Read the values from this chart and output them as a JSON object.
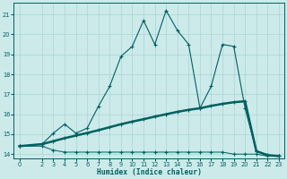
{
  "xlabel": "Humidex (Indice chaleur)",
  "background_color": "#cceaea",
  "grid_color": "#aad4d4",
  "line_color": "#006060",
  "xlim": [
    -0.5,
    23.5
  ],
  "ylim": [
    13.8,
    21.6
  ],
  "yticks": [
    14,
    15,
    16,
    17,
    18,
    19,
    20,
    21
  ],
  "xticks": [
    0,
    2,
    3,
    4,
    5,
    6,
    7,
    8,
    9,
    10,
    11,
    12,
    13,
    14,
    15,
    16,
    17,
    18,
    19,
    20,
    21,
    22,
    23
  ],
  "line_flat_x": [
    0,
    2,
    3,
    4,
    5,
    6,
    7,
    8,
    9,
    10,
    11,
    12,
    13,
    14,
    15,
    16,
    17,
    18,
    19,
    20,
    21,
    22,
    23
  ],
  "line_flat_y": [
    14.4,
    14.4,
    14.2,
    14.1,
    14.1,
    14.1,
    14.1,
    14.1,
    14.1,
    14.1,
    14.1,
    14.1,
    14.1,
    14.1,
    14.1,
    14.1,
    14.1,
    14.1,
    14.0,
    14.0,
    14.0,
    13.9,
    13.9
  ],
  "line_trend_x": [
    0,
    2,
    3,
    4,
    5,
    6,
    7,
    8,
    9,
    10,
    11,
    12,
    13,
    14,
    15,
    16,
    17,
    18,
    19,
    20,
    21,
    22,
    23
  ],
  "line_trend_y": [
    14.4,
    14.5,
    14.65,
    14.8,
    14.93,
    15.06,
    15.2,
    15.35,
    15.5,
    15.63,
    15.75,
    15.88,
    16.0,
    16.12,
    16.22,
    16.3,
    16.42,
    16.52,
    16.6,
    16.65,
    14.15,
    13.95,
    13.9
  ],
  "line_humidex_x": [
    0,
    2,
    3,
    4,
    5,
    6,
    7,
    8,
    9,
    10,
    11,
    12,
    13,
    14,
    15,
    16,
    17,
    18,
    19,
    20,
    21,
    22,
    23
  ],
  "line_humidex_y": [
    14.4,
    14.5,
    15.05,
    15.5,
    15.05,
    15.3,
    16.4,
    17.4,
    18.9,
    19.4,
    20.7,
    19.5,
    21.2,
    20.2,
    19.5,
    16.3,
    17.4,
    19.5,
    19.4,
    16.3,
    14.15,
    13.95,
    13.9
  ],
  "font_family": "monospace"
}
